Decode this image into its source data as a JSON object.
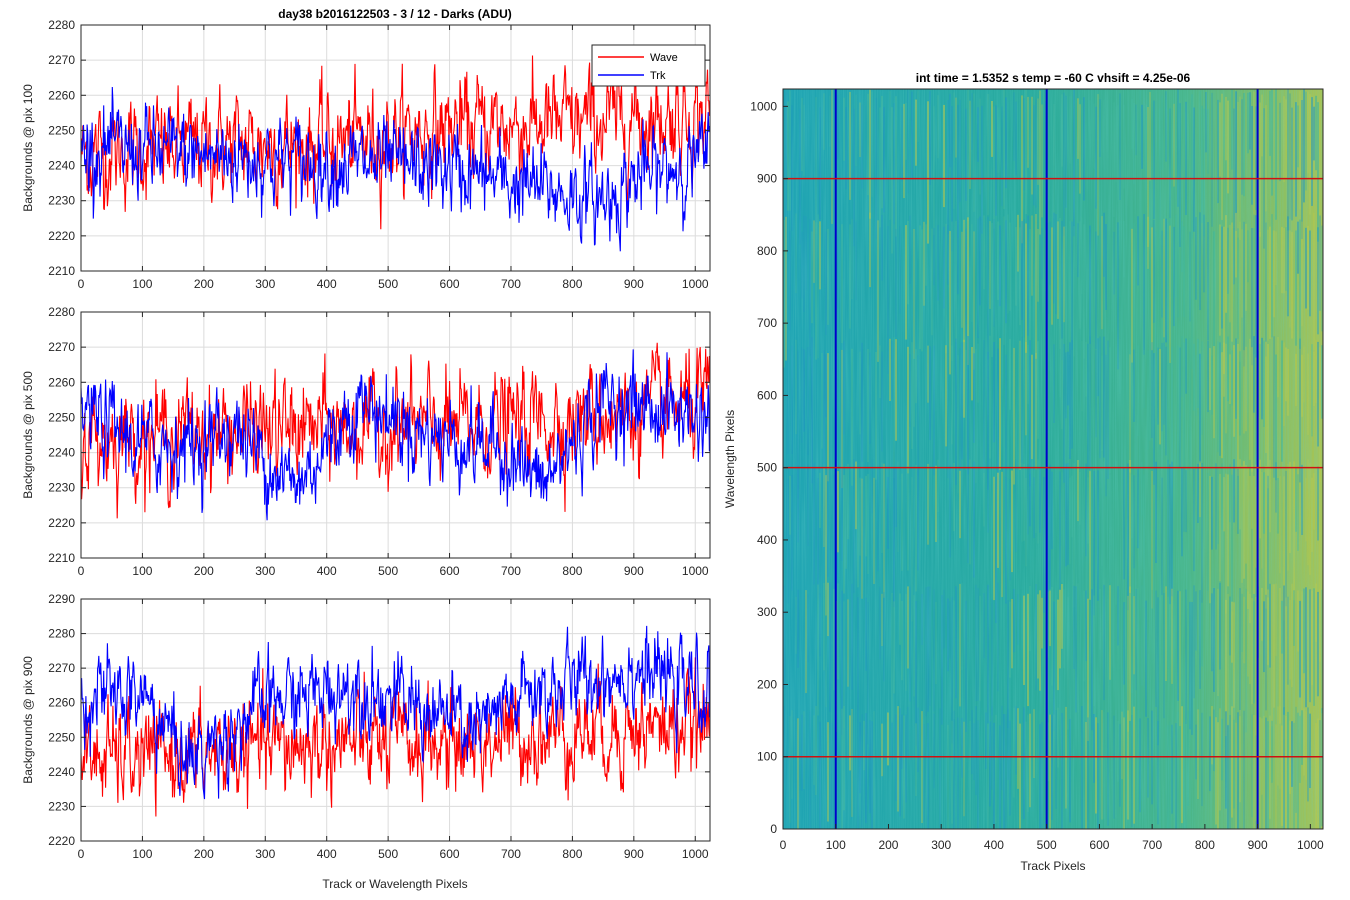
{
  "chart_data": [
    {
      "type": "line",
      "title": "day38 b2016122503 - 3 / 12 - Darks (ADU)",
      "xlabel": "",
      "ylabel": "Backgrounds @ pix 100",
      "xlim": [
        0,
        1024
      ],
      "ylim": [
        2210,
        2280
      ],
      "xticks": [
        0,
        100,
        200,
        300,
        400,
        500,
        600,
        700,
        800,
        900,
        1000
      ],
      "yticks": [
        2210,
        2220,
        2230,
        2240,
        2250,
        2260,
        2270,
        2280
      ],
      "grid": true,
      "legend": "top-right",
      "series": [
        {
          "name": "Wave",
          "color": "#ff0000",
          "profile": [
            [
              0,
              2243
            ],
            [
              200,
              2246
            ],
            [
              400,
              2246
            ],
            [
              600,
              2251
            ],
            [
              800,
              2252
            ],
            [
              1024,
              2255
            ]
          ],
          "noise": 7
        },
        {
          "name": "Trk",
          "color": "#0000ff",
          "profile": [
            [
              0,
              2245
            ],
            [
              200,
              2243
            ],
            [
              400,
              2241
            ],
            [
              600,
              2239
            ],
            [
              700,
              2235
            ],
            [
              850,
              2230
            ],
            [
              900,
              2236
            ],
            [
              1024,
              2243
            ]
          ],
          "noise": 6
        }
      ]
    },
    {
      "type": "line",
      "title": "",
      "xlabel": "",
      "ylabel": "Backgrounds @ pix 500",
      "xlim": [
        0,
        1024
      ],
      "ylim": [
        2210,
        2280
      ],
      "xticks": [
        0,
        100,
        200,
        300,
        400,
        500,
        600,
        700,
        800,
        900,
        1000
      ],
      "yticks": [
        2210,
        2220,
        2230,
        2240,
        2250,
        2260,
        2270,
        2280
      ],
      "grid": true,
      "series": [
        {
          "name": "Wave",
          "color": "#ff0000",
          "profile": [
            [
              0,
              2244
            ],
            [
              200,
              2246
            ],
            [
              400,
              2247
            ],
            [
              600,
              2247
            ],
            [
              800,
              2250
            ],
            [
              1024,
              2254
            ]
          ],
          "noise": 7
        },
        {
          "name": "Trk",
          "color": "#0000ff",
          "profile": [
            [
              0,
              2252
            ],
            [
              100,
              2242
            ],
            [
              200,
              2243
            ],
            [
              250,
              2247
            ],
            [
              350,
              2230
            ],
            [
              450,
              2255
            ],
            [
              550,
              2246
            ],
            [
              700,
              2240
            ],
            [
              750,
              2230
            ],
            [
              850,
              2255
            ],
            [
              1024,
              2250
            ]
          ],
          "noise": 6
        }
      ]
    },
    {
      "type": "line",
      "title": "",
      "xlabel": "Track or Wavelength Pixels",
      "ylabel": "Backgrounds @ pix 900",
      "xlim": [
        0,
        1024
      ],
      "ylim": [
        2220,
        2290
      ],
      "xticks": [
        0,
        100,
        200,
        300,
        400,
        500,
        600,
        700,
        800,
        900,
        1000
      ],
      "yticks": [
        2220,
        2230,
        2240,
        2250,
        2260,
        2270,
        2280,
        2290
      ],
      "grid": true,
      "series": [
        {
          "name": "Wave",
          "color": "#ff0000",
          "profile": [
            [
              0,
              2244
            ],
            [
              200,
              2245
            ],
            [
              400,
              2248
            ],
            [
              600,
              2248
            ],
            [
              800,
              2252
            ],
            [
              1024,
              2253
            ]
          ],
          "noise": 7
        },
        {
          "name": "Trk",
          "color": "#0000ff",
          "profile": [
            [
              0,
              2262
            ],
            [
              100,
              2262
            ],
            [
              180,
              2243
            ],
            [
              300,
              2260
            ],
            [
              450,
              2265
            ],
            [
              650,
              2252
            ],
            [
              720,
              2262
            ],
            [
              900,
              2270
            ],
            [
              1024,
              2262
            ]
          ],
          "noise": 6
        }
      ]
    },
    {
      "type": "heatmap",
      "title": "int time = 1.5352 s    temp = -60 C    vhsift = 4.25e-06",
      "xlabel": "Track Pixels",
      "ylabel": "Wavelength Pixels",
      "xlim": [
        0,
        1024
      ],
      "ylim": [
        0,
        1024
      ],
      "xticks": [
        0,
        100,
        200,
        300,
        400,
        500,
        600,
        700,
        800,
        900,
        1000
      ],
      "yticks": [
        0,
        100,
        200,
        300,
        400,
        500,
        600,
        700,
        800,
        900,
        1000
      ],
      "colormap": [
        "#1f9fb8",
        "#2ab0a0",
        "#9bc45a",
        "#c8c840"
      ],
      "vertical_lines": {
        "x": [
          100,
          500,
          900
        ],
        "color": "#0000cc"
      },
      "horizontal_lines": {
        "y": [
          100,
          500,
          900
        ],
        "color": "#d01010"
      }
    }
  ]
}
